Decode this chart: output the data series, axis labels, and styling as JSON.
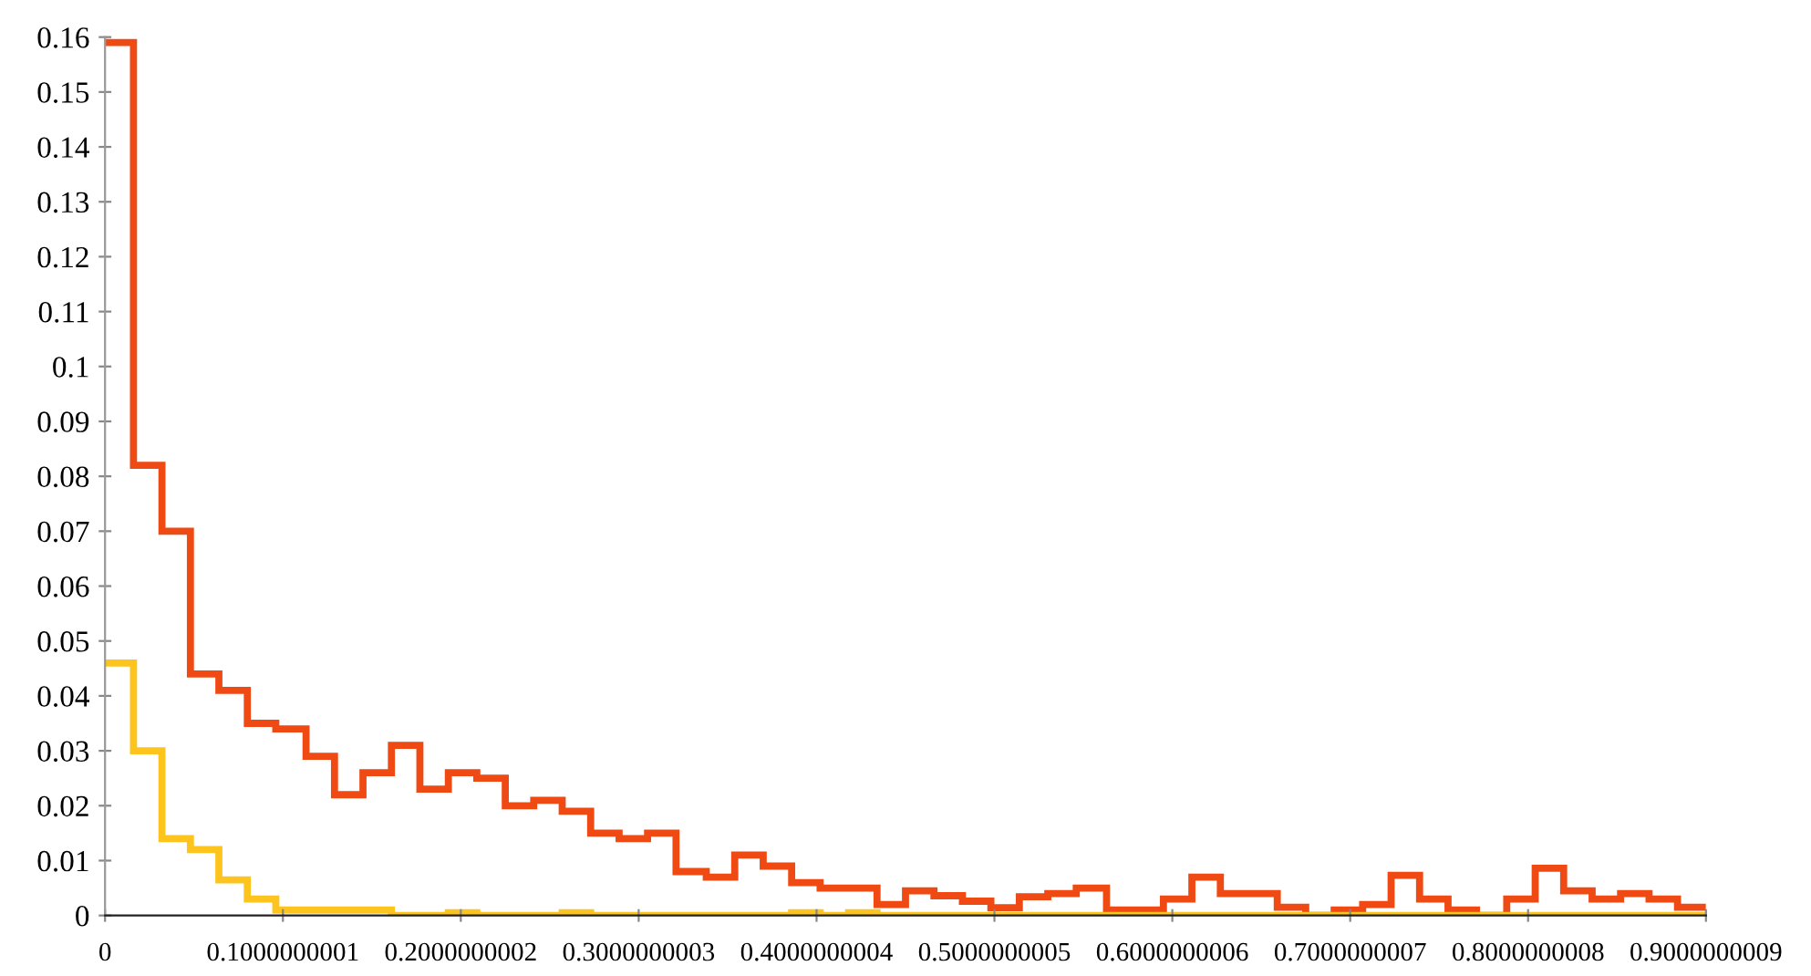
{
  "chart_data": {
    "type": "histogram",
    "bins": [
      0,
      0.016,
      0.032,
      0.048,
      0.064,
      0.08,
      0.096,
      0.113,
      0.129,
      0.145,
      0.161,
      0.177,
      0.193,
      0.209,
      0.225,
      0.241,
      0.257,
      0.273,
      0.289,
      0.305,
      0.321,
      0.338,
      0.354,
      0.37,
      0.386,
      0.402,
      0.418,
      0.434,
      0.45,
      0.466,
      0.482,
      0.498,
      0.514,
      0.53,
      0.546,
      0.563,
      0.579,
      0.595,
      0.611,
      0.627,
      0.643,
      0.659,
      0.675,
      0.691,
      0.707,
      0.723,
      0.739,
      0.755,
      0.771,
      0.788,
      0.804,
      0.82,
      0.836,
      0.852,
      0.868,
      0.884,
      0.9
    ],
    "series": [
      {
        "color": "#f04a14",
        "values": [
          0.159,
          0.082,
          0.07,
          0.044,
          0.041,
          0.035,
          0.034,
          0.029,
          0.022,
          0.026,
          0.031,
          0.023,
          0.026,
          0.025,
          0.02,
          0.021,
          0.019,
          0.015,
          0.014,
          0.015,
          0.008,
          0.007,
          0.011,
          0.009,
          0.006,
          0.005,
          0.005,
          0.002,
          0.0045,
          0.0036,
          0.0026,
          0.0014,
          0.0034,
          0.004,
          0.005,
          0.001,
          0.001,
          0.003,
          0.007,
          0.004,
          0.004,
          0.0015,
          0,
          0.001,
          0.002,
          0.0073,
          0.003,
          0.001,
          0,
          0.003,
          0.0086,
          0.0045,
          0.003,
          0.004,
          0.003,
          0.0015
        ]
      },
      {
        "color": "#fcc41c",
        "values": [
          0.046,
          0.03,
          0.014,
          0.012,
          0.0065,
          0.003,
          0.001,
          0.001,
          0.001,
          0.001,
          0,
          0,
          0.0005,
          0,
          0,
          0,
          0.0005,
          0,
          0,
          0,
          0,
          0,
          0,
          0,
          0.0005,
          0,
          0.0005,
          0,
          0,
          0,
          0,
          0,
          0,
          0,
          0,
          0,
          0,
          0,
          0,
          0,
          0,
          0,
          0,
          0,
          0,
          0,
          0,
          0,
          0,
          0,
          0,
          0,
          0,
          0,
          0,
          0
        ]
      }
    ],
    "xlim": [
      0,
      0.9000000009
    ],
    "xticks": [
      0,
      0.1000000001,
      0.2000000002,
      0.3000000003,
      0.4000000004,
      0.5000000005,
      0.6000000006,
      0.7000000007,
      0.8000000008,
      0.9000000009
    ],
    "ylim": [
      0,
      0.16
    ],
    "yticks": [
      0,
      0.01,
      0.02,
      0.03,
      0.04,
      0.05,
      0.06,
      0.07,
      0.08,
      0.09,
      0.1,
      0.11,
      0.12,
      0.13,
      0.14,
      0.15,
      0.16
    ],
    "grid": false
  }
}
